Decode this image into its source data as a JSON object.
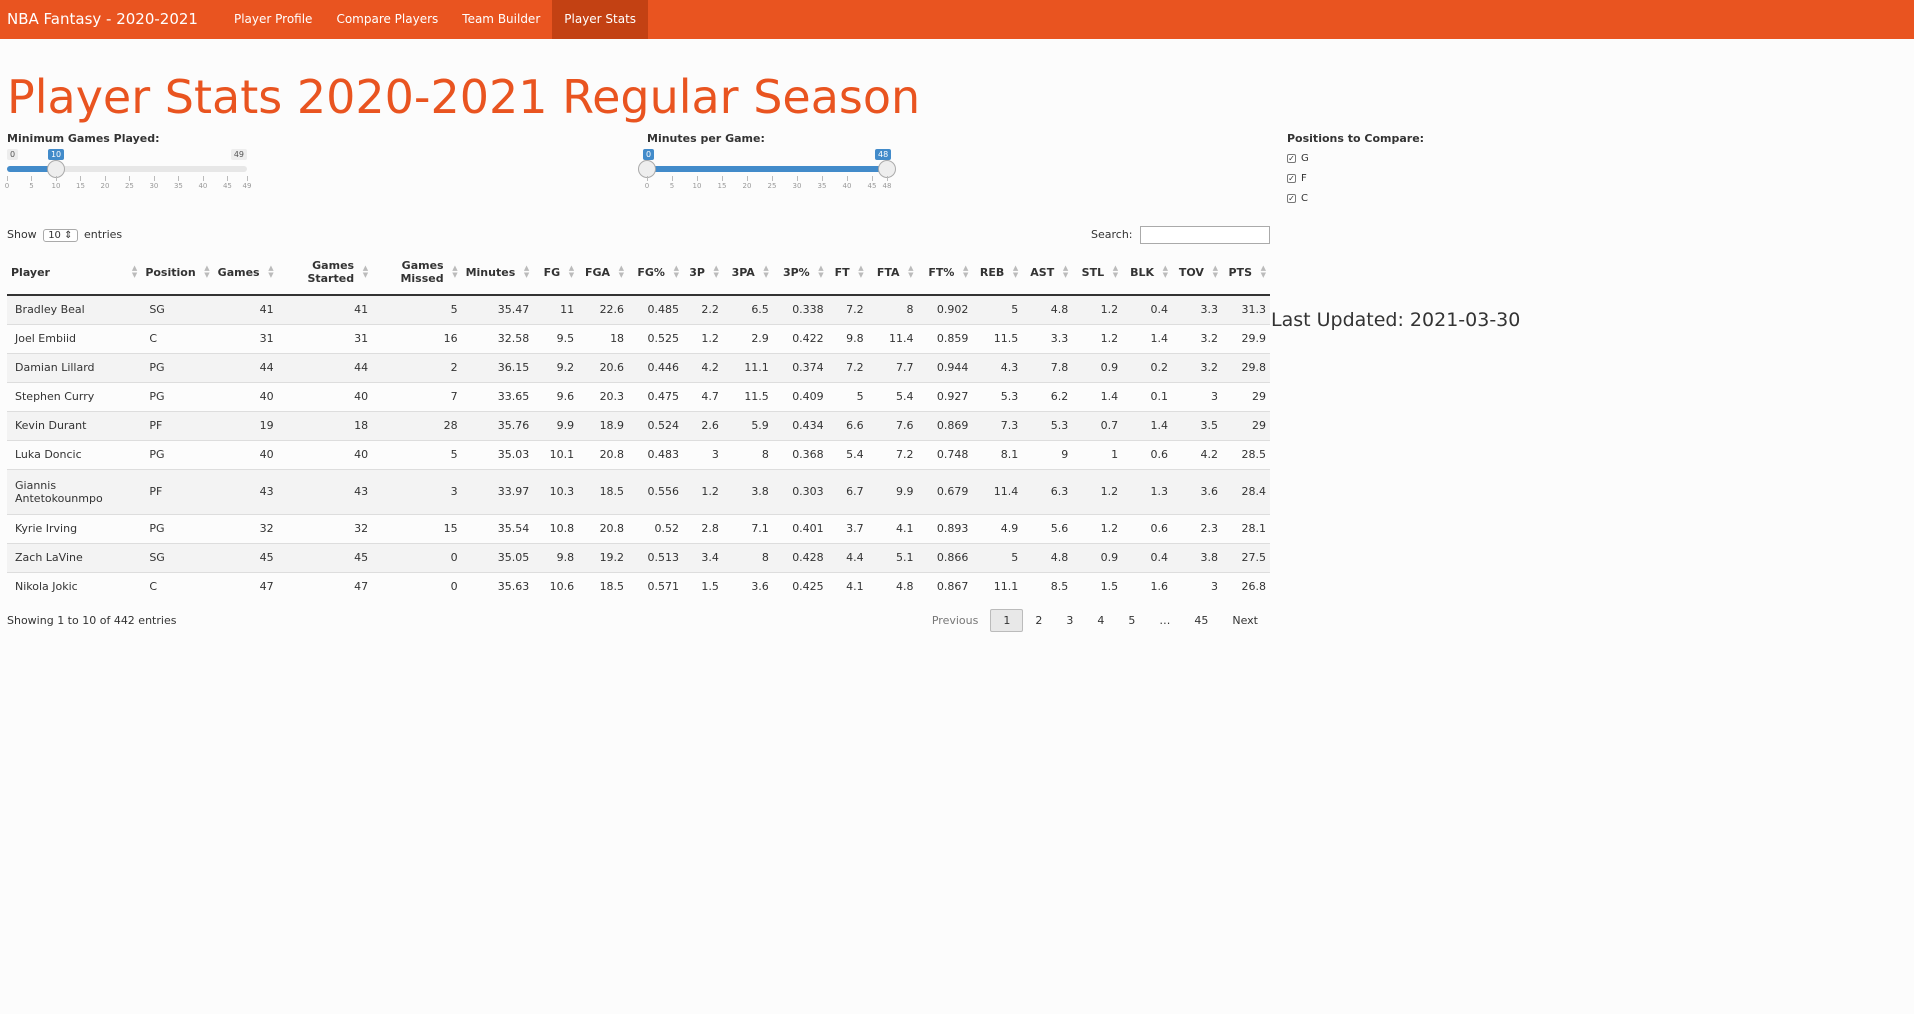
{
  "navbar": {
    "brand": "NBA Fantasy - 2020-2021",
    "items": [
      "Player Profile",
      "Compare Players",
      "Team Builder",
      "Player Stats"
    ],
    "active": "Player Stats"
  },
  "page": {
    "title": "Player Stats 2020-2021 Regular Season",
    "last_updated": "Last Updated: 2021-03-30"
  },
  "filters": {
    "games": {
      "label": "Minimum Games Played:",
      "min": 0,
      "max": 49,
      "value": 10,
      "min_label": "0",
      "max_label": "49",
      "value_label": "10",
      "ticks": [
        "0",
        "5",
        "10",
        "15",
        "20",
        "25",
        "30",
        "35",
        "40",
        "45",
        "49"
      ]
    },
    "minutes": {
      "label": "Minutes per Game:",
      "min": 0,
      "max": 48,
      "low": 0,
      "high": 48,
      "low_label": "0",
      "high_label": "48",
      "ticks": [
        "0",
        "5",
        "10",
        "15",
        "20",
        "25",
        "30",
        "35",
        "40",
        "45",
        "48"
      ]
    },
    "positions": {
      "label": "Positions to Compare:",
      "options": [
        {
          "label": "G",
          "checked": true
        },
        {
          "label": "F",
          "checked": true
        },
        {
          "label": "C",
          "checked": true
        }
      ]
    }
  },
  "table": {
    "show_label": "Show",
    "length_value": "10",
    "entries_label": "entries",
    "search_label": "Search:",
    "search_value": "",
    "columns": [
      "Player",
      "Position",
      "Games",
      "Games Started",
      "Games Missed",
      "Minutes",
      "FG",
      "FGA",
      "FG%",
      "3P",
      "3PA",
      "3P%",
      "FT",
      "FTA",
      "FT%",
      "REB",
      "AST",
      "STL",
      "BLK",
      "TOV",
      "PTS"
    ],
    "rows": [
      [
        "Bradley Beal",
        "SG",
        "41",
        "41",
        "5",
        "35.47",
        "11",
        "22.6",
        "0.485",
        "2.2",
        "6.5",
        "0.338",
        "7.2",
        "8",
        "0.902",
        "5",
        "4.8",
        "1.2",
        "0.4",
        "3.3",
        "31.3"
      ],
      [
        "Joel Embiid",
        "C",
        "31",
        "31",
        "16",
        "32.58",
        "9.5",
        "18",
        "0.525",
        "1.2",
        "2.9",
        "0.422",
        "9.8",
        "11.4",
        "0.859",
        "11.5",
        "3.3",
        "1.2",
        "1.4",
        "3.2",
        "29.9"
      ],
      [
        "Damian Lillard",
        "PG",
        "44",
        "44",
        "2",
        "36.15",
        "9.2",
        "20.6",
        "0.446",
        "4.2",
        "11.1",
        "0.374",
        "7.2",
        "7.7",
        "0.944",
        "4.3",
        "7.8",
        "0.9",
        "0.2",
        "3.2",
        "29.8"
      ],
      [
        "Stephen Curry",
        "PG",
        "40",
        "40",
        "7",
        "33.65",
        "9.6",
        "20.3",
        "0.475",
        "4.7",
        "11.5",
        "0.409",
        "5",
        "5.4",
        "0.927",
        "5.3",
        "6.2",
        "1.4",
        "0.1",
        "3",
        "29"
      ],
      [
        "Kevin Durant",
        "PF",
        "19",
        "18",
        "28",
        "35.76",
        "9.9",
        "18.9",
        "0.524",
        "2.6",
        "5.9",
        "0.434",
        "6.6",
        "7.6",
        "0.869",
        "7.3",
        "5.3",
        "0.7",
        "1.4",
        "3.5",
        "29"
      ],
      [
        "Luka Doncic",
        "PG",
        "40",
        "40",
        "5",
        "35.03",
        "10.1",
        "20.8",
        "0.483",
        "3",
        "8",
        "0.368",
        "5.4",
        "7.2",
        "0.748",
        "8.1",
        "9",
        "1",
        "0.6",
        "4.2",
        "28.5"
      ],
      [
        "Giannis Antetokounmpo",
        "PF",
        "43",
        "43",
        "3",
        "33.97",
        "10.3",
        "18.5",
        "0.556",
        "1.2",
        "3.8",
        "0.303",
        "6.7",
        "9.9",
        "0.679",
        "11.4",
        "6.3",
        "1.2",
        "1.3",
        "3.6",
        "28.4"
      ],
      [
        "Kyrie Irving",
        "PG",
        "32",
        "32",
        "15",
        "35.54",
        "10.8",
        "20.8",
        "0.52",
        "2.8",
        "7.1",
        "0.401",
        "3.7",
        "4.1",
        "0.893",
        "4.9",
        "5.6",
        "1.2",
        "0.6",
        "2.3",
        "28.1"
      ],
      [
        "Zach LaVine",
        "SG",
        "45",
        "45",
        "0",
        "35.05",
        "9.8",
        "19.2",
        "0.513",
        "3.4",
        "8",
        "0.428",
        "4.4",
        "5.1",
        "0.866",
        "5",
        "4.8",
        "0.9",
        "0.4",
        "3.8",
        "27.5"
      ],
      [
        "Nikola Jokic",
        "C",
        "47",
        "47",
        "0",
        "35.63",
        "10.6",
        "18.5",
        "0.571",
        "1.5",
        "3.6",
        "0.425",
        "4.1",
        "4.8",
        "0.867",
        "11.1",
        "8.5",
        "1.5",
        "1.6",
        "3",
        "26.8"
      ]
    ],
    "info": "Showing 1 to 10 of 442 entries",
    "pagination": {
      "previous": "Previous",
      "pages": [
        "1",
        "2",
        "3",
        "4",
        "5",
        "…",
        "45"
      ],
      "current": "1",
      "next": "Next"
    }
  },
  "colors": {
    "brand": "#e95420",
    "nav_active": "#c34113",
    "slider_fill": "#428bca"
  }
}
